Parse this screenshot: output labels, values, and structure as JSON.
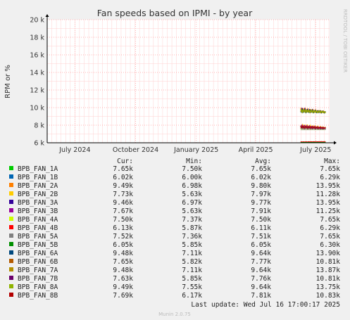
{
  "chart_data": {
    "type": "line",
    "title": "Fan speeds based on IPMI - by year",
    "ylabel": "RPM or %",
    "watermark": "RRDTOOL / TOBI OETIKER",
    "footer": "Munin 2.0.75",
    "ylim": [
      6000,
      20000
    ],
    "yticks": [
      {
        "value": 6000,
        "label": "6 k"
      },
      {
        "value": 8000,
        "label": "8 k"
      },
      {
        "value": 10000,
        "label": "10 k"
      },
      {
        "value": 12000,
        "label": "12 k"
      },
      {
        "value": 14000,
        "label": "14 k"
      },
      {
        "value": 16000,
        "label": "16 k"
      },
      {
        "value": 18000,
        "label": "18 k"
      },
      {
        "value": 20000,
        "label": "20 k"
      }
    ],
    "xlim": [
      "2024-05-20",
      "2025-07-22"
    ],
    "xticks": [
      {
        "date": "2024-07-01",
        "label": "July 2024"
      },
      {
        "date": "2024-10-01",
        "label": "October 2024"
      },
      {
        "date": "2025-01-01",
        "label": "January 2025"
      },
      {
        "date": "2025-04-01",
        "label": "April 2025"
      },
      {
        "date": "2025-07-01",
        "label": "July 2025"
      }
    ],
    "data_start": "2025-06-08",
    "data_end": "2025-07-16",
    "legend_headers": {
      "cur": "Cur:",
      "min": "Min:",
      "avg": "Avg:",
      "max": "Max:"
    },
    "series": [
      {
        "name": "BPB_FAN_1A",
        "color": "#00cc00",
        "cur": "7.65k",
        "min": "7.50k",
        "avg": "7.65k",
        "max": "7.65k"
      },
      {
        "name": "BPB_FAN_1B",
        "color": "#0066b3",
        "cur": "6.02k",
        "min": "6.00k",
        "avg": "6.02k",
        "max": "6.29k"
      },
      {
        "name": "BPB_FAN_2A",
        "color": "#ff8000",
        "cur": "9.49k",
        "min": "6.98k",
        "avg": "9.80k",
        "max": "13.95k"
      },
      {
        "name": "BPB_FAN_2B",
        "color": "#ffcc00",
        "cur": "7.73k",
        "min": "5.63k",
        "avg": "7.97k",
        "max": "11.28k"
      },
      {
        "name": "BPB_FAN_3A",
        "color": "#330099",
        "cur": "9.46k",
        "min": "6.97k",
        "avg": "9.77k",
        "max": "13.95k"
      },
      {
        "name": "BPB_FAN_3B",
        "color": "#990099",
        "cur": "7.67k",
        "min": "5.63k",
        "avg": "7.91k",
        "max": "11.25k"
      },
      {
        "name": "BPB_FAN_4A",
        "color": "#ccff00",
        "cur": "7.50k",
        "min": "7.37k",
        "avg": "7.50k",
        "max": "7.65k"
      },
      {
        "name": "BPB_FAN_4B",
        "color": "#ff0000",
        "cur": "6.13k",
        "min": "5.87k",
        "avg": "6.11k",
        "max": "6.29k"
      },
      {
        "name": "BPB_FAN_5A",
        "color": "#808080",
        "cur": "7.52k",
        "min": "7.36k",
        "avg": "7.51k",
        "max": "7.65k"
      },
      {
        "name": "BPB_FAN_5B",
        "color": "#008f00",
        "cur": "6.05k",
        "min": "5.85k",
        "avg": "6.05k",
        "max": "6.30k"
      },
      {
        "name": "BPB_FAN_6A",
        "color": "#00487d",
        "cur": "9.48k",
        "min": "7.11k",
        "avg": "9.64k",
        "max": "13.90k"
      },
      {
        "name": "BPB_FAN_6B",
        "color": "#b35a00",
        "cur": "7.65k",
        "min": "5.82k",
        "avg": "7.77k",
        "max": "10.81k"
      },
      {
        "name": "BPB_FAN_7A",
        "color": "#b38f00",
        "cur": "9.48k",
        "min": "7.11k",
        "avg": "9.64k",
        "max": "13.87k"
      },
      {
        "name": "BPB_FAN_7B",
        "color": "#6b006b",
        "cur": "7.63k",
        "min": "5.85k",
        "avg": "7.76k",
        "max": "10.81k"
      },
      {
        "name": "BPB_FAN_8A",
        "color": "#8fb300",
        "cur": "9.49k",
        "min": "7.55k",
        "avg": "9.64k",
        "max": "13.75k"
      },
      {
        "name": "BPB_FAN_8B",
        "color": "#b30000",
        "cur": "7.69k",
        "min": "6.17k",
        "avg": "7.81k",
        "max": "10.83k"
      }
    ],
    "last_update": "Last update: Wed Jul 16 17:00:17 2025",
    "grid": true
  }
}
